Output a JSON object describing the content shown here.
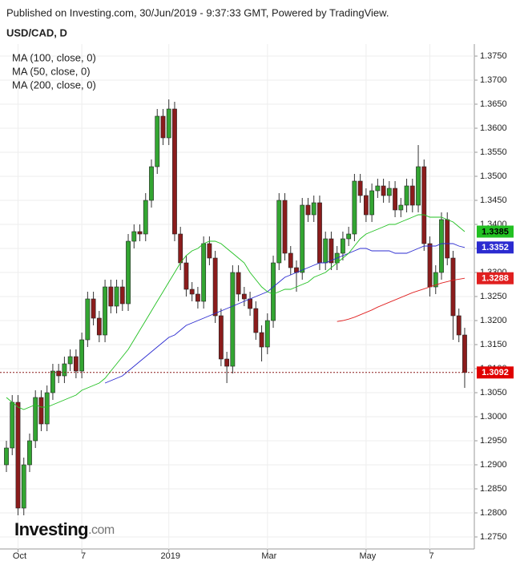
{
  "chart_data": {
    "type": "candlestick",
    "header": "Published on Investing.com, 30/Jun/2019 - 9:37:33 GMT, Powered by TradingView.",
    "title": "USD/CAD, D",
    "logo": {
      "main": "Investing",
      "suffix": ".com"
    },
    "categories": [
      null,
      null,
      "Oct",
      null,
      null,
      null,
      null,
      null,
      null,
      null,
      null,
      null,
      null,
      "7",
      null,
      null,
      null,
      null,
      null,
      null,
      null,
      null,
      null,
      null,
      null,
      null,
      null,
      null,
      "2019",
      null,
      null,
      null,
      null,
      null,
      null,
      null,
      null,
      null,
      null,
      null,
      null,
      null,
      null,
      null,
      null,
      "Mar",
      null,
      null,
      null,
      null,
      null,
      null,
      null,
      null,
      null,
      null,
      null,
      null,
      null,
      null,
      null,
      null,
      "May",
      null,
      null,
      null,
      null,
      null,
      null,
      null,
      null,
      null,
      null,
      "7",
      null,
      null,
      null,
      null,
      null,
      null
    ],
    "up_color": "#33a532",
    "down_color": "#8b1c1c",
    "ohlc": {
      "open": [
        1.29,
        1.2935,
        1.303,
        1.281,
        1.29,
        1.295,
        1.304,
        1.2985,
        1.305,
        1.3095,
        1.3085,
        1.311,
        1.3125,
        1.3095,
        1.316,
        1.3245,
        1.3205,
        1.317,
        1.327,
        1.323,
        1.327,
        1.3235,
        1.3365,
        1.3385,
        1.338,
        1.345,
        1.352,
        1.3625,
        1.358,
        1.364,
        1.338,
        1.332,
        1.3265,
        1.3255,
        1.324,
        1.336,
        1.333,
        1.321,
        1.312,
        1.3105,
        1.33,
        1.3255,
        1.3245,
        1.3225,
        1.3175,
        1.3145,
        1.32,
        1.332,
        1.345,
        1.334,
        1.331,
        1.33,
        1.344,
        1.342,
        1.3445,
        1.332,
        1.337,
        1.332,
        1.334,
        1.337,
        1.338,
        1.349,
        1.346,
        1.342,
        1.347,
        1.348,
        1.346,
        1.3475,
        1.343,
        1.344,
        1.348,
        1.344,
        1.352,
        1.336,
        1.327,
        1.33,
        1.341,
        1.333,
        1.321,
        1.317
      ],
      "high": [
        1.295,
        1.3045,
        1.3045,
        1.2915,
        1.2965,
        1.3055,
        1.3055,
        1.3065,
        1.311,
        1.311,
        1.3125,
        1.314,
        1.314,
        1.3175,
        1.326,
        1.326,
        1.322,
        1.3285,
        1.3285,
        1.3285,
        1.3285,
        1.338,
        1.34,
        1.34,
        1.3465,
        1.3535,
        1.364,
        1.364,
        1.366,
        1.3655,
        1.3395,
        1.3335,
        1.328,
        1.327,
        1.3375,
        1.3375,
        1.3345,
        1.3225,
        1.3135,
        1.3315,
        1.3315,
        1.327,
        1.326,
        1.324,
        1.319,
        1.3215,
        1.3335,
        1.3465,
        1.3465,
        1.3355,
        1.3325,
        1.3455,
        1.3455,
        1.346,
        1.346,
        1.3385,
        1.3385,
        1.3355,
        1.3385,
        1.3395,
        1.3505,
        1.3505,
        1.3475,
        1.3485,
        1.3495,
        1.3495,
        1.349,
        1.349,
        1.3455,
        1.3495,
        1.3495,
        1.3565,
        1.3535,
        1.3375,
        1.3315,
        1.3425,
        1.3425,
        1.3345,
        1.3225,
        1.3185
      ],
      "low": [
        1.2885,
        1.292,
        1.2795,
        1.2795,
        1.2885,
        1.2935,
        1.297,
        1.297,
        1.3035,
        1.307,
        1.307,
        1.3095,
        1.308,
        1.308,
        1.3145,
        1.319,
        1.3155,
        1.3155,
        1.3215,
        1.3215,
        1.322,
        1.322,
        1.335,
        1.3365,
        1.3365,
        1.3435,
        1.3505,
        1.3565,
        1.3565,
        1.3365,
        1.3305,
        1.325,
        1.324,
        1.3225,
        1.3225,
        1.3315,
        1.3195,
        1.3105,
        1.307,
        1.309,
        1.324,
        1.323,
        1.321,
        1.316,
        1.3115,
        1.313,
        1.3185,
        1.3305,
        1.3325,
        1.3295,
        1.326,
        1.3285,
        1.3405,
        1.3405,
        1.3305,
        1.3305,
        1.3305,
        1.3305,
        1.3325,
        1.3355,
        1.3365,
        1.3445,
        1.3405,
        1.3405,
        1.3455,
        1.3445,
        1.3445,
        1.3415,
        1.3415,
        1.3425,
        1.3425,
        1.3425,
        1.3345,
        1.325,
        1.3255,
        1.3285,
        1.3315,
        1.316,
        1.3155,
        1.306
      ],
      "close": [
        1.2935,
        1.303,
        1.281,
        1.29,
        1.295,
        1.304,
        1.2985,
        1.305,
        1.3095,
        1.3085,
        1.311,
        1.3125,
        1.3095,
        1.316,
        1.3245,
        1.3205,
        1.317,
        1.327,
        1.323,
        1.327,
        1.3235,
        1.3365,
        1.3385,
        1.338,
        1.345,
        1.352,
        1.3625,
        1.358,
        1.364,
        1.338,
        1.332,
        1.3265,
        1.3255,
        1.324,
        1.336,
        1.333,
        1.321,
        1.312,
        1.3105,
        1.33,
        1.3255,
        1.3245,
        1.3225,
        1.3175,
        1.3145,
        1.32,
        1.332,
        1.345,
        1.334,
        1.331,
        1.33,
        1.344,
        1.342,
        1.3445,
        1.332,
        1.337,
        1.332,
        1.334,
        1.337,
        1.338,
        1.349,
        1.346,
        1.342,
        1.347,
        1.348,
        1.346,
        1.3475,
        1.343,
        1.344,
        1.348,
        1.344,
        1.352,
        1.336,
        1.327,
        1.33,
        1.341,
        1.333,
        1.321,
        1.317,
        1.3092
      ]
    },
    "series": [
      {
        "name": "MA (100, close, 0)",
        "color": "#2b2bd0",
        "values": [
          null,
          null,
          null,
          null,
          null,
          null,
          null,
          null,
          null,
          null,
          null,
          null,
          null,
          null,
          null,
          null,
          null,
          1.307,
          1.3075,
          1.308,
          1.3085,
          1.3095,
          1.3105,
          1.3115,
          1.3125,
          1.3135,
          1.3145,
          1.3155,
          1.3165,
          1.317,
          1.318,
          1.319,
          1.3195,
          1.32,
          1.3205,
          1.321,
          1.3215,
          1.322,
          1.3225,
          1.323,
          1.3235,
          1.324,
          1.3245,
          1.325,
          1.3255,
          1.326,
          1.327,
          1.328,
          1.329,
          1.3295,
          1.33,
          1.3305,
          1.331,
          1.3315,
          1.332,
          1.332,
          1.3325,
          1.333,
          1.3335,
          1.334,
          1.3345,
          1.335,
          1.335,
          1.3345,
          1.3345,
          1.3345,
          1.3345,
          1.334,
          1.334,
          1.334,
          1.3345,
          1.335,
          1.3355,
          1.3355,
          1.3355,
          1.336,
          1.336,
          1.336,
          1.3355,
          1.3352
        ]
      },
      {
        "name": "MA (50, close, 0)",
        "color": "#22c022",
        "values": [
          1.304,
          1.303,
          1.302,
          1.3015,
          1.302,
          1.3025,
          1.302,
          1.302,
          1.3025,
          1.303,
          1.3035,
          1.304,
          1.3045,
          1.3055,
          1.306,
          1.3065,
          1.307,
          1.308,
          1.3095,
          1.311,
          1.3125,
          1.314,
          1.316,
          1.318,
          1.32,
          1.322,
          1.324,
          1.326,
          1.328,
          1.33,
          1.332,
          1.3335,
          1.3345,
          1.335,
          1.336,
          1.3365,
          1.3365,
          1.336,
          1.335,
          1.334,
          1.333,
          1.332,
          1.33,
          1.3285,
          1.327,
          1.326,
          1.3255,
          1.326,
          1.3265,
          1.3265,
          1.327,
          1.3275,
          1.328,
          1.329,
          1.3295,
          1.33,
          1.331,
          1.332,
          1.333,
          1.334,
          1.3355,
          1.337,
          1.338,
          1.3385,
          1.339,
          1.3395,
          1.34,
          1.34,
          1.3405,
          1.341,
          1.3415,
          1.342,
          1.342,
          1.3415,
          1.3415,
          1.3415,
          1.341,
          1.3405,
          1.3395,
          1.3385
        ]
      },
      {
        "name": "MA (200, close, 0)",
        "color": "#e02020",
        "values": [
          null,
          null,
          null,
          null,
          null,
          null,
          null,
          null,
          null,
          null,
          null,
          null,
          null,
          null,
          null,
          null,
          null,
          null,
          null,
          null,
          null,
          null,
          null,
          null,
          null,
          null,
          null,
          null,
          null,
          null,
          null,
          null,
          null,
          null,
          null,
          null,
          null,
          null,
          null,
          null,
          null,
          null,
          null,
          null,
          null,
          null,
          null,
          null,
          null,
          null,
          null,
          null,
          null,
          null,
          null,
          null,
          null,
          1.3198,
          1.32,
          1.3203,
          1.3207,
          1.3212,
          1.3217,
          1.3222,
          1.3228,
          1.3233,
          1.3238,
          1.3243,
          1.3248,
          1.3253,
          1.3258,
          1.3262,
          1.3266,
          1.327,
          1.3274,
          1.3278,
          1.3281,
          1.3284,
          1.3286,
          1.3288
        ]
      }
    ],
    "ylim": [
      1.2725,
      1.3775
    ],
    "yticks": [
      {
        "value": 1.275,
        "label": "1.2750"
      },
      {
        "value": 1.28,
        "label": "1.2800"
      },
      {
        "value": 1.285,
        "label": "1.2850"
      },
      {
        "value": 1.29,
        "label": "1.2900"
      },
      {
        "value": 1.295,
        "label": "1.2950"
      },
      {
        "value": 1.3,
        "label": "1.3000"
      },
      {
        "value": 1.305,
        "label": "1.3050"
      },
      {
        "value": 1.31,
        "label": "1.3100"
      },
      {
        "value": 1.315,
        "label": "1.3150"
      },
      {
        "value": 1.32,
        "label": "1.3200"
      },
      {
        "value": 1.325,
        "label": "1.3250"
      },
      {
        "value": 1.33,
        "label": "1.3300"
      },
      {
        "value": 1.335,
        "label": "1.3350"
      },
      {
        "value": 1.34,
        "label": "1.3400"
      },
      {
        "value": 1.345,
        "label": "1.3450"
      },
      {
        "value": 1.35,
        "label": "1.3500"
      },
      {
        "value": 1.355,
        "label": "1.3550"
      },
      {
        "value": 1.36,
        "label": "1.3600"
      },
      {
        "value": 1.365,
        "label": "1.3650"
      },
      {
        "value": 1.37,
        "label": "1.3700"
      },
      {
        "value": 1.375,
        "label": "1.3750"
      }
    ],
    "grid": true
  }
}
